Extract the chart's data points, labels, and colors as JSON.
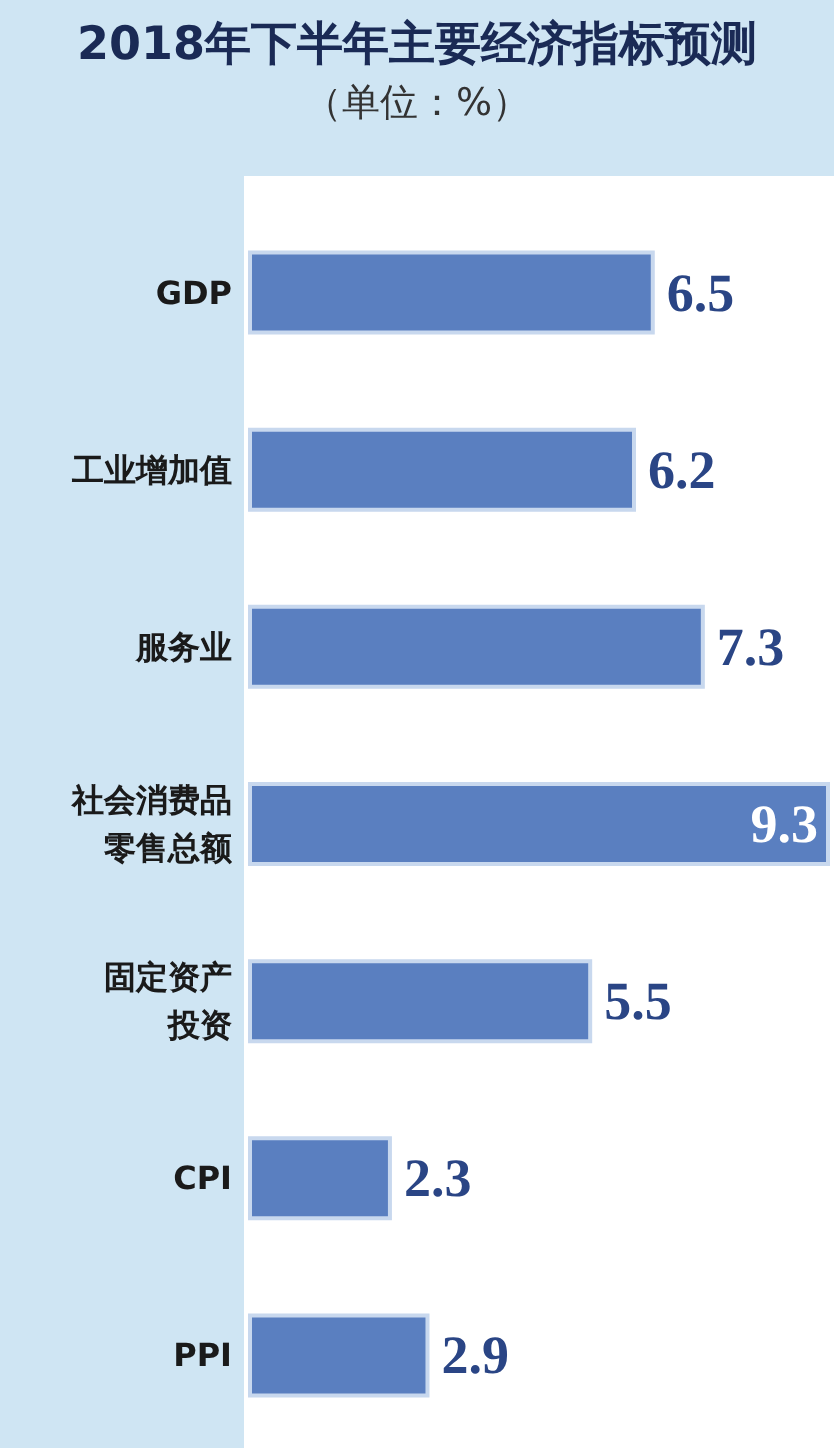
{
  "chart_data": {
    "type": "bar",
    "orientation": "horizontal",
    "title": "2018年下半年主要经济指标预测",
    "subtitle": "（单位：%）",
    "categories": [
      "GDP",
      "工业增加值",
      "服务业",
      "社会消费品零售总额",
      "固定资产投资",
      "CPI",
      "PPI"
    ],
    "values": [
      6.5,
      6.2,
      7.3,
      9.3,
      5.5,
      2.3,
      2.9
    ],
    "color": "#5a7fc0",
    "data_labels": true
  }
}
